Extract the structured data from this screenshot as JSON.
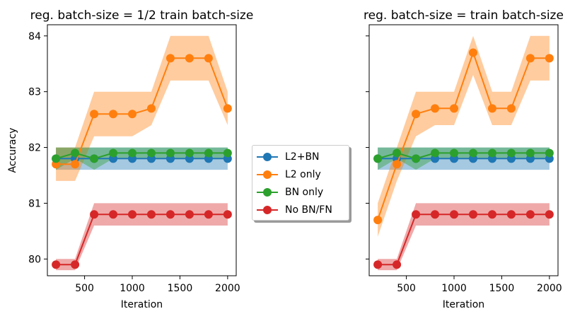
{
  "chart_data": [
    {
      "type": "line",
      "title": "reg. batch-size = 1/2 train batch-size",
      "xlabel": "Iteration",
      "ylabel": "Accuracy",
      "xlim": [
        110,
        2090
      ],
      "ylim": [
        79.7,
        84.2
      ],
      "xticks": [
        500,
        1000,
        1500,
        2000
      ],
      "yticks": [
        80,
        81,
        82,
        83,
        84
      ],
      "x": [
        200,
        400,
        600,
        800,
        1000,
        1200,
        1400,
        1600,
        1800,
        2000
      ],
      "series": [
        {
          "name": "L2+BN",
          "color": "#1f77b4",
          "values": [
            81.8,
            81.8,
            81.8,
            81.8,
            81.8,
            81.8,
            81.8,
            81.8,
            81.8,
            81.8
          ],
          "lower": [
            81.6,
            81.6,
            81.6,
            81.6,
            81.6,
            81.6,
            81.6,
            81.6,
            81.6,
            81.6
          ],
          "upper": [
            82.0,
            82.0,
            82.0,
            82.0,
            82.0,
            82.0,
            82.0,
            82.0,
            82.0,
            82.0
          ]
        },
        {
          "name": "L2 only",
          "color": "#ff7f0e",
          "values": [
            81.7,
            81.7,
            82.6,
            82.6,
            82.6,
            82.7,
            83.6,
            83.6,
            83.6,
            82.7
          ],
          "lower": [
            81.4,
            81.4,
            82.2,
            82.2,
            82.2,
            82.4,
            83.2,
            83.2,
            83.2,
            82.4
          ],
          "upper": [
            82.0,
            82.0,
            83.0,
            83.0,
            83.0,
            83.0,
            84.0,
            84.0,
            84.0,
            83.0
          ]
        },
        {
          "name": "BN only",
          "color": "#2ca02c",
          "values": [
            81.8,
            81.9,
            81.8,
            81.9,
            81.9,
            81.9,
            81.9,
            81.9,
            81.9,
            81.9
          ],
          "lower": [
            81.6,
            81.8,
            81.6,
            81.8,
            81.8,
            81.8,
            81.8,
            81.8,
            81.8,
            81.8
          ],
          "upper": [
            82.0,
            82.0,
            82.0,
            82.0,
            82.0,
            82.0,
            82.0,
            82.0,
            82.0,
            82.0
          ]
        },
        {
          "name": "No BN/FN",
          "color": "#d62728",
          "values": [
            79.9,
            79.9,
            80.8,
            80.8,
            80.8,
            80.8,
            80.8,
            80.8,
            80.8,
            80.8
          ],
          "lower": [
            79.8,
            79.8,
            80.6,
            80.6,
            80.6,
            80.6,
            80.6,
            80.6,
            80.6,
            80.6
          ],
          "upper": [
            80.0,
            80.0,
            81.0,
            81.0,
            81.0,
            81.0,
            81.0,
            81.0,
            81.0,
            81.0
          ]
        }
      ]
    },
    {
      "type": "line",
      "title": "reg. batch-size = train batch-size",
      "xlabel": "Iteration",
      "ylabel": "",
      "xlim": [
        110,
        2090
      ],
      "ylim": [
        79.7,
        84.2
      ],
      "xticks": [
        500,
        1000,
        1500,
        2000
      ],
      "yticks": [
        80,
        81,
        82,
        83,
        84
      ],
      "x": [
        200,
        400,
        600,
        800,
        1000,
        1200,
        1400,
        1600,
        1800,
        2000
      ],
      "series": [
        {
          "name": "L2+BN",
          "color": "#1f77b4",
          "values": [
            81.8,
            81.8,
            81.8,
            81.8,
            81.8,
            81.8,
            81.8,
            81.8,
            81.8,
            81.8
          ],
          "lower": [
            81.6,
            81.6,
            81.6,
            81.6,
            81.6,
            81.6,
            81.6,
            81.6,
            81.6,
            81.6
          ],
          "upper": [
            82.0,
            82.0,
            82.0,
            82.0,
            82.0,
            82.0,
            82.0,
            82.0,
            82.0,
            82.0
          ]
        },
        {
          "name": "L2 only",
          "color": "#ff7f0e",
          "values": [
            80.7,
            81.7,
            82.6,
            82.7,
            82.7,
            83.7,
            82.7,
            82.7,
            83.6,
            83.6
          ],
          "lower": [
            80.4,
            81.4,
            82.2,
            82.4,
            82.4,
            83.3,
            82.4,
            82.4,
            83.2,
            83.2
          ],
          "upper": [
            81.0,
            82.0,
            83.0,
            83.0,
            83.0,
            84.0,
            83.0,
            83.0,
            84.0,
            84.0
          ]
        },
        {
          "name": "BN only",
          "color": "#2ca02c",
          "values": [
            81.8,
            81.9,
            81.8,
            81.9,
            81.9,
            81.9,
            81.9,
            81.9,
            81.9,
            81.9
          ],
          "lower": [
            81.6,
            81.8,
            81.6,
            81.8,
            81.8,
            81.8,
            81.8,
            81.8,
            81.8,
            81.8
          ],
          "upper": [
            82.0,
            82.0,
            82.0,
            82.0,
            82.0,
            82.0,
            82.0,
            82.0,
            82.0,
            82.0
          ]
        },
        {
          "name": "No BN/FN",
          "color": "#d62728",
          "values": [
            79.9,
            79.9,
            80.8,
            80.8,
            80.8,
            80.8,
            80.8,
            80.8,
            80.8,
            80.8
          ],
          "lower": [
            79.8,
            79.8,
            80.6,
            80.6,
            80.6,
            80.6,
            80.6,
            80.6,
            80.6,
            80.6
          ],
          "upper": [
            80.0,
            80.0,
            81.0,
            81.0,
            81.0,
            81.0,
            81.0,
            81.0,
            81.0,
            81.0
          ]
        }
      ]
    }
  ],
  "legend": {
    "placement": "center, between panels",
    "items": [
      {
        "label": "L2+BN",
        "color": "#1f77b4"
      },
      {
        "label": "L2 only",
        "color": "#ff7f0e"
      },
      {
        "label": "BN only",
        "color": "#2ca02c"
      },
      {
        "label": "No BN/FN",
        "color": "#d62728"
      }
    ]
  }
}
